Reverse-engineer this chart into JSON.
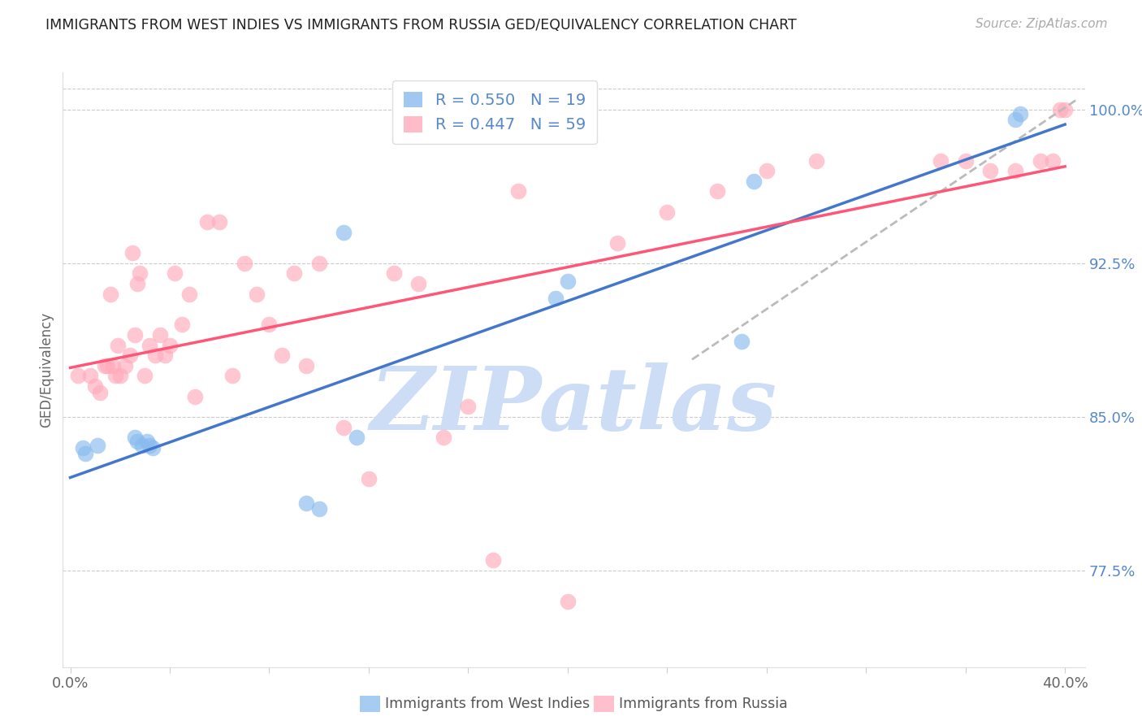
{
  "title": "IMMIGRANTS FROM WEST INDIES VS IMMIGRANTS FROM RUSSIA GED/EQUIVALENCY CORRELATION CHART",
  "source": "Source: ZipAtlas.com",
  "ylabel": "GED/Equivalency",
  "xlim": [
    -0.003,
    0.408
  ],
  "ylim": [
    0.728,
    1.018
  ],
  "yticks_right": [
    0.775,
    0.85,
    0.925,
    1.0
  ],
  "ytick_right_labels": [
    "77.5%",
    "85.0%",
    "92.5%",
    "100.0%"
  ],
  "blue_color": "#88bbee",
  "pink_color": "#ffaabb",
  "blue_line_color": "#4477cc",
  "pink_line_color": "#ff5577",
  "gray_dash_color": "#bbbbbb",
  "blue_scatter_x": [
    0.005,
    0.006,
    0.026,
    0.027,
    0.029,
    0.031,
    0.032,
    0.033,
    0.095,
    0.1,
    0.11,
    0.195,
    0.2,
    0.27,
    0.275,
    0.011,
    0.115,
    0.38,
    0.382
  ],
  "blue_scatter_y": [
    0.835,
    0.832,
    0.84,
    0.838,
    0.836,
    0.838,
    0.836,
    0.835,
    0.808,
    0.805,
    0.94,
    0.908,
    0.916,
    0.887,
    0.965,
    0.836,
    0.84,
    0.995,
    0.998
  ],
  "pink_scatter_x": [
    0.003,
    0.008,
    0.01,
    0.012,
    0.014,
    0.015,
    0.016,
    0.017,
    0.018,
    0.019,
    0.02,
    0.022,
    0.024,
    0.025,
    0.026,
    0.027,
    0.028,
    0.03,
    0.032,
    0.034,
    0.036,
    0.038,
    0.04,
    0.042,
    0.045,
    0.048,
    0.05,
    0.055,
    0.06,
    0.065,
    0.07,
    0.075,
    0.08,
    0.085,
    0.09,
    0.095,
    0.1,
    0.11,
    0.12,
    0.13,
    0.14,
    0.15,
    0.16,
    0.17,
    0.18,
    0.2,
    0.22,
    0.24,
    0.26,
    0.28,
    0.3,
    0.35,
    0.36,
    0.37,
    0.38,
    0.39,
    0.395,
    0.398,
    0.4
  ],
  "pink_scatter_y": [
    0.87,
    0.87,
    0.865,
    0.862,
    0.875,
    0.875,
    0.91,
    0.875,
    0.87,
    0.885,
    0.87,
    0.875,
    0.88,
    0.93,
    0.89,
    0.915,
    0.92,
    0.87,
    0.885,
    0.88,
    0.89,
    0.88,
    0.885,
    0.92,
    0.895,
    0.91,
    0.86,
    0.945,
    0.945,
    0.87,
    0.925,
    0.91,
    0.895,
    0.88,
    0.92,
    0.875,
    0.925,
    0.845,
    0.82,
    0.92,
    0.915,
    0.84,
    0.855,
    0.78,
    0.96,
    0.76,
    0.935,
    0.95,
    0.96,
    0.97,
    0.975,
    0.975,
    0.975,
    0.97,
    0.97,
    0.975,
    0.975,
    1.0,
    1.0
  ],
  "watermark_text": "ZIPatlas",
  "background_color": "#ffffff",
  "grid_color": "#cccccc",
  "legend_blue_label": "R = 0.550   N = 19",
  "legend_pink_label": "R = 0.447   N = 59",
  "bottom_label_blue": "Immigrants from West Indies",
  "bottom_label_pink": "Immigrants from Russia"
}
